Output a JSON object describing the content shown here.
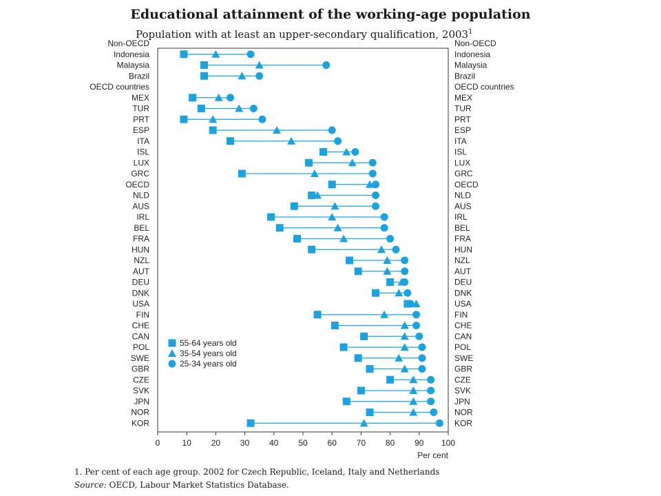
{
  "chart_data": {
    "type": "scatter",
    "title": "Educational attainment of the working-age population",
    "subtitle": "Population with at least an upper-secondary qualification, 2003",
    "subtitle_footnote_mark": "1",
    "xlabel": "Per cent",
    "xlim": [
      0,
      100
    ],
    "xticks": [
      0,
      10,
      20,
      30,
      40,
      50,
      60,
      70,
      80,
      90,
      100
    ],
    "legend": {
      "placement": "bottom-left",
      "entries": [
        "55-64 years old",
        "35-54 years old",
        "25-34 years old"
      ]
    },
    "series_order": [
      "55-64 years old",
      "35-54 years old",
      "25-34 years old"
    ],
    "marker_color": "#1aa3e0",
    "rows": [
      {
        "label": "Non-OECD",
        "header": true
      },
      {
        "label": "Indonesia",
        "values": [
          9,
          20,
          32
        ]
      },
      {
        "label": "Malaysia",
        "values": [
          16,
          35,
          58
        ]
      },
      {
        "label": "Brazil",
        "values": [
          16,
          29,
          35
        ]
      },
      {
        "label": "OECD countries",
        "header": true
      },
      {
        "label": "MEX",
        "values": [
          12,
          21,
          25
        ]
      },
      {
        "label": "TUR",
        "values": [
          15,
          28,
          33
        ]
      },
      {
        "label": "PRT",
        "values": [
          9,
          19,
          36
        ]
      },
      {
        "label": "ESP",
        "values": [
          19,
          41,
          60
        ]
      },
      {
        "label": "ITA",
        "values": [
          25,
          46,
          62
        ]
      },
      {
        "label": "ISL",
        "values": [
          57,
          65,
          68
        ]
      },
      {
        "label": "LUX",
        "values": [
          52,
          67,
          74
        ]
      },
      {
        "label": "GRC",
        "values": [
          29,
          54,
          74
        ]
      },
      {
        "label": "OECD",
        "values": [
          60,
          73,
          75
        ]
      },
      {
        "label": "NLD",
        "values": [
          53,
          55,
          75
        ]
      },
      {
        "label": "AUS",
        "values": [
          47,
          61,
          75
        ]
      },
      {
        "label": "IRL",
        "values": [
          39,
          60,
          78
        ]
      },
      {
        "label": "BEL",
        "values": [
          42,
          62,
          78
        ]
      },
      {
        "label": "FRA",
        "values": [
          48,
          64,
          80
        ]
      },
      {
        "label": "HUN",
        "values": [
          53,
          77,
          82
        ]
      },
      {
        "label": "NZL",
        "values": [
          66,
          79,
          85
        ]
      },
      {
        "label": "AUT",
        "values": [
          69,
          79,
          85
        ]
      },
      {
        "label": "DEU",
        "values": [
          80,
          84,
          85
        ]
      },
      {
        "label": "DNK",
        "values": [
          75,
          83,
          86
        ]
      },
      {
        "label": "USA",
        "values": [
          86,
          89,
          87
        ]
      },
      {
        "label": "FIN",
        "values": [
          55,
          78,
          89
        ]
      },
      {
        "label": "CHE",
        "values": [
          61,
          85,
          89
        ]
      },
      {
        "label": "CAN",
        "values": [
          71,
          85,
          90
        ]
      },
      {
        "label": "POL",
        "values": [
          64,
          85,
          91
        ]
      },
      {
        "label": "SWE",
        "values": [
          69,
          83,
          91
        ]
      },
      {
        "label": "GBR",
        "values": [
          73,
          85,
          91
        ]
      },
      {
        "label": "CZE",
        "values": [
          80,
          88,
          94
        ]
      },
      {
        "label": "SVK",
        "values": [
          70,
          88,
          94
        ]
      },
      {
        "label": "JPN",
        "values": [
          65,
          88,
          94
        ]
      },
      {
        "label": "NOR",
        "values": [
          73,
          88,
          95
        ]
      },
      {
        "label": "KOR",
        "values": [
          32,
          71,
          97
        ]
      }
    ]
  },
  "footnote": "1. Per cent of each age group. 2002 for Czech Republic, Iceland, Italy and Netherlands",
  "source_label": "Source:",
  "source_text": "OECD, Labour Market Statistics Database."
}
